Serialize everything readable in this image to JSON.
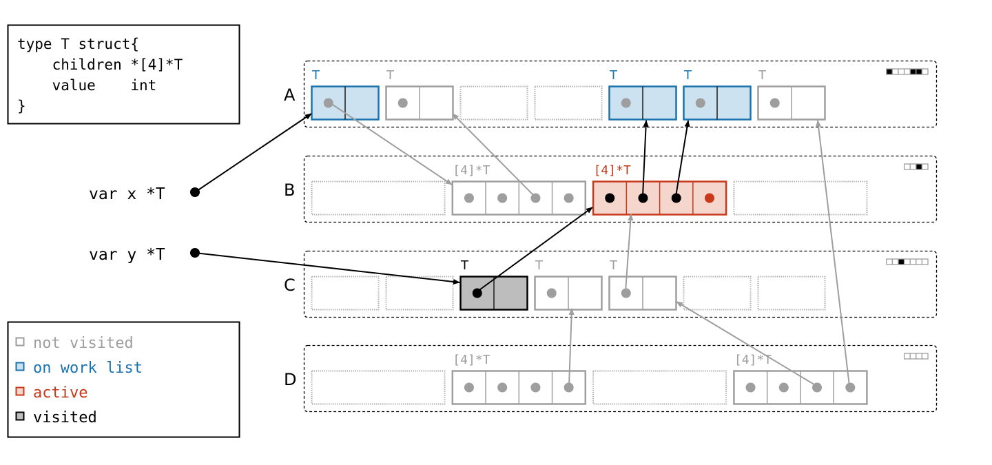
{
  "code": {
    "lines": [
      "type T struct{",
      "    children *[4]*T",
      "    value    int",
      "}"
    ]
  },
  "vars": [
    {
      "label": "var x *T"
    },
    {
      "label": "var y *T"
    }
  ],
  "legend": [
    {
      "label": "not visited",
      "state": "gray"
    },
    {
      "label": "on work list",
      "state": "blue"
    },
    {
      "label": "active",
      "state": "red"
    },
    {
      "label": "visited",
      "state": "black"
    }
  ],
  "colors": {
    "gray": "#9e9e9e",
    "blue_stroke": "#1a73ad",
    "blue_fill": "#cce2f0",
    "red_stroke": "#c8391a",
    "red_fill": "#f5d6cd",
    "visited_fill": "#bdbdbd",
    "black": "#000000"
  },
  "rows": [
    {
      "label": "A",
      "slots": 7,
      "bitmap": [
        1,
        0,
        0,
        0,
        1,
        1,
        0
      ],
      "objects": [
        {
          "slot": 0,
          "state": "blue",
          "type": "T",
          "dots": [
            "gray",
            ""
          ]
        },
        {
          "slot": 1,
          "state": "gray",
          "type": "T",
          "dots": [
            "gray",
            ""
          ]
        },
        {
          "slot": 2,
          "state": "empty"
        },
        {
          "slot": 3,
          "state": "empty"
        },
        {
          "slot": 4,
          "state": "blue",
          "type": "T",
          "dots": [
            "gray",
            ""
          ]
        },
        {
          "slot": 5,
          "state": "blue",
          "type": "T",
          "dots": [
            "gray",
            ""
          ]
        },
        {
          "slot": 6,
          "state": "gray",
          "type": "T",
          "dots": [
            "gray",
            ""
          ]
        }
      ]
    },
    {
      "label": "B",
      "slots": 4,
      "bitmap": [
        0,
        0,
        1,
        0
      ],
      "objects": [
        {
          "slot": 0,
          "state": "empty"
        },
        {
          "slot": 1,
          "state": "gray",
          "type": "[4]*T",
          "dots": [
            "gray",
            "gray",
            "gray",
            "gray"
          ]
        },
        {
          "slot": 2,
          "state": "red",
          "type": "[4]*T",
          "dots": [
            "black",
            "black",
            "black",
            "red"
          ]
        },
        {
          "slot": 3,
          "state": "empty"
        }
      ]
    },
    {
      "label": "C",
      "slots": 7,
      "bitmap": [
        0,
        0,
        1,
        0,
        0,
        0,
        0
      ],
      "objects": [
        {
          "slot": 0,
          "state": "empty"
        },
        {
          "slot": 1,
          "state": "empty"
        },
        {
          "slot": 2,
          "state": "black",
          "type": "T",
          "dots": [
            "black",
            ""
          ]
        },
        {
          "slot": 3,
          "state": "gray",
          "type": "T",
          "dots": [
            "gray",
            ""
          ]
        },
        {
          "slot": 4,
          "state": "gray",
          "type": "T",
          "dots": [
            "gray",
            ""
          ]
        },
        {
          "slot": 5,
          "state": "empty"
        },
        {
          "slot": 6,
          "state": "empty"
        }
      ]
    },
    {
      "label": "D",
      "slots": 4,
      "bitmap": [
        0,
        0,
        0,
        0
      ],
      "objects": [
        {
          "slot": 0,
          "state": "empty"
        },
        {
          "slot": 1,
          "state": "gray",
          "type": "[4]*T",
          "dots": [
            "gray",
            "gray",
            "gray",
            "gray"
          ]
        },
        {
          "slot": 2,
          "state": "empty"
        },
        {
          "slot": 3,
          "state": "gray",
          "type": "[4]*T",
          "dots": [
            "gray",
            "gray",
            "gray",
            "gray"
          ]
        }
      ]
    }
  ]
}
